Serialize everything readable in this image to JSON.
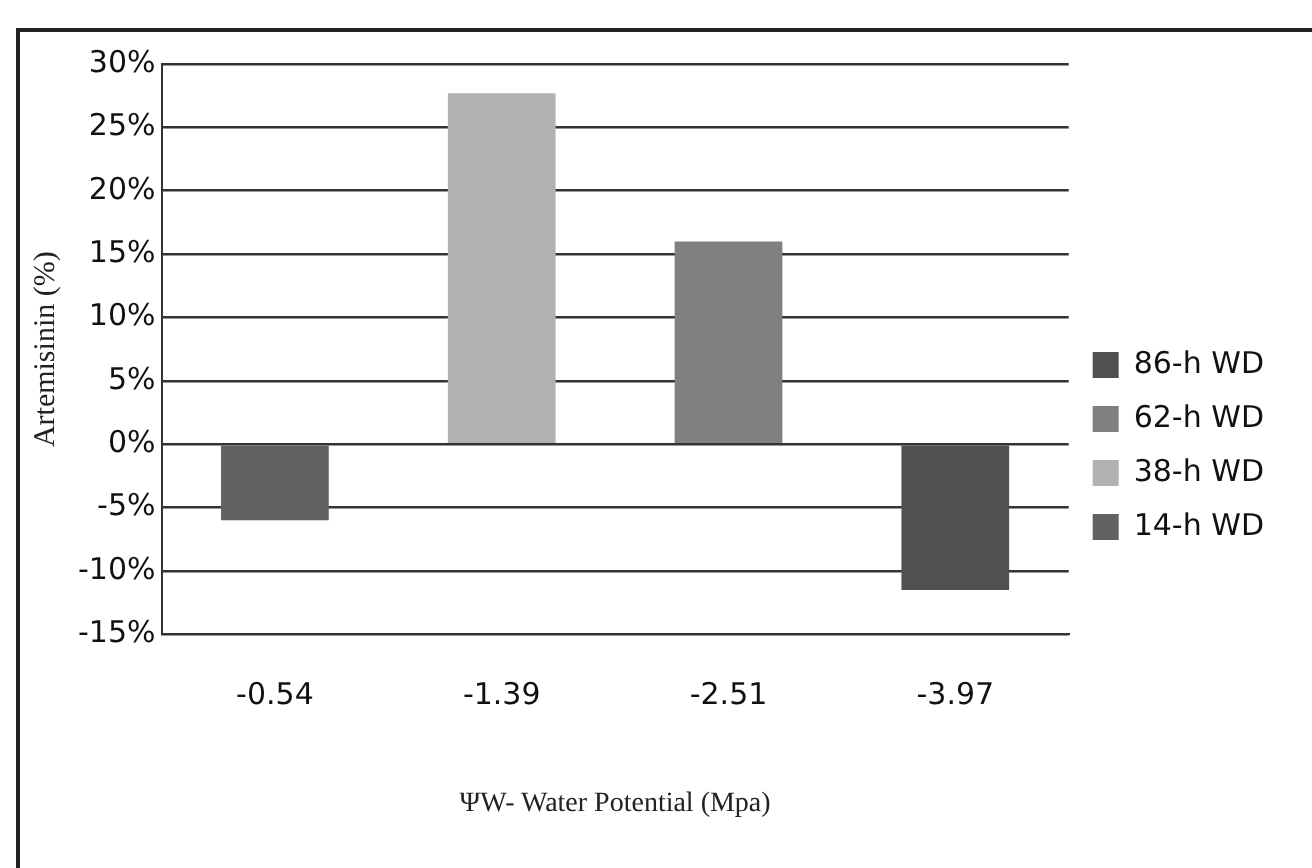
{
  "chart_data": {
    "type": "bar",
    "xlabel": "ΨW- Water Potential (Mpa)",
    "ylabel": "Artemisinin (%)",
    "categories": [
      "-0.54",
      "-1.39",
      "-2.51",
      "-3.97"
    ],
    "series": [
      {
        "name": "14-h WD",
        "color": "#626262",
        "values": [
          -6,
          null,
          null,
          null
        ]
      },
      {
        "name": "38-h WD",
        "color": "#b2b2b2",
        "values": [
          null,
          27.7,
          null,
          null
        ]
      },
      {
        "name": "62-h WD",
        "color": "#808080",
        "values": [
          null,
          null,
          16,
          null
        ]
      },
      {
        "name": "86-h WD",
        "color": "#505050",
        "values": [
          null,
          null,
          null,
          -11.5
        ]
      }
    ],
    "ylim": [
      -15,
      30
    ],
    "yticks": [
      {
        "value": -15,
        "label": "-15%"
      },
      {
        "value": -10,
        "label": "-10%"
      },
      {
        "value": -5,
        "label": "-5%"
      },
      {
        "value": 0,
        "label": "0%"
      },
      {
        "value": 5,
        "label": "5%"
      },
      {
        "value": 10,
        "label": "10%"
      },
      {
        "value": 15,
        "label": "15%"
      },
      {
        "value": 20,
        "label": "20%"
      },
      {
        "value": 25,
        "label": "25%"
      },
      {
        "value": 30,
        "label": "30%"
      }
    ],
    "grid": "y",
    "legend": "right"
  }
}
